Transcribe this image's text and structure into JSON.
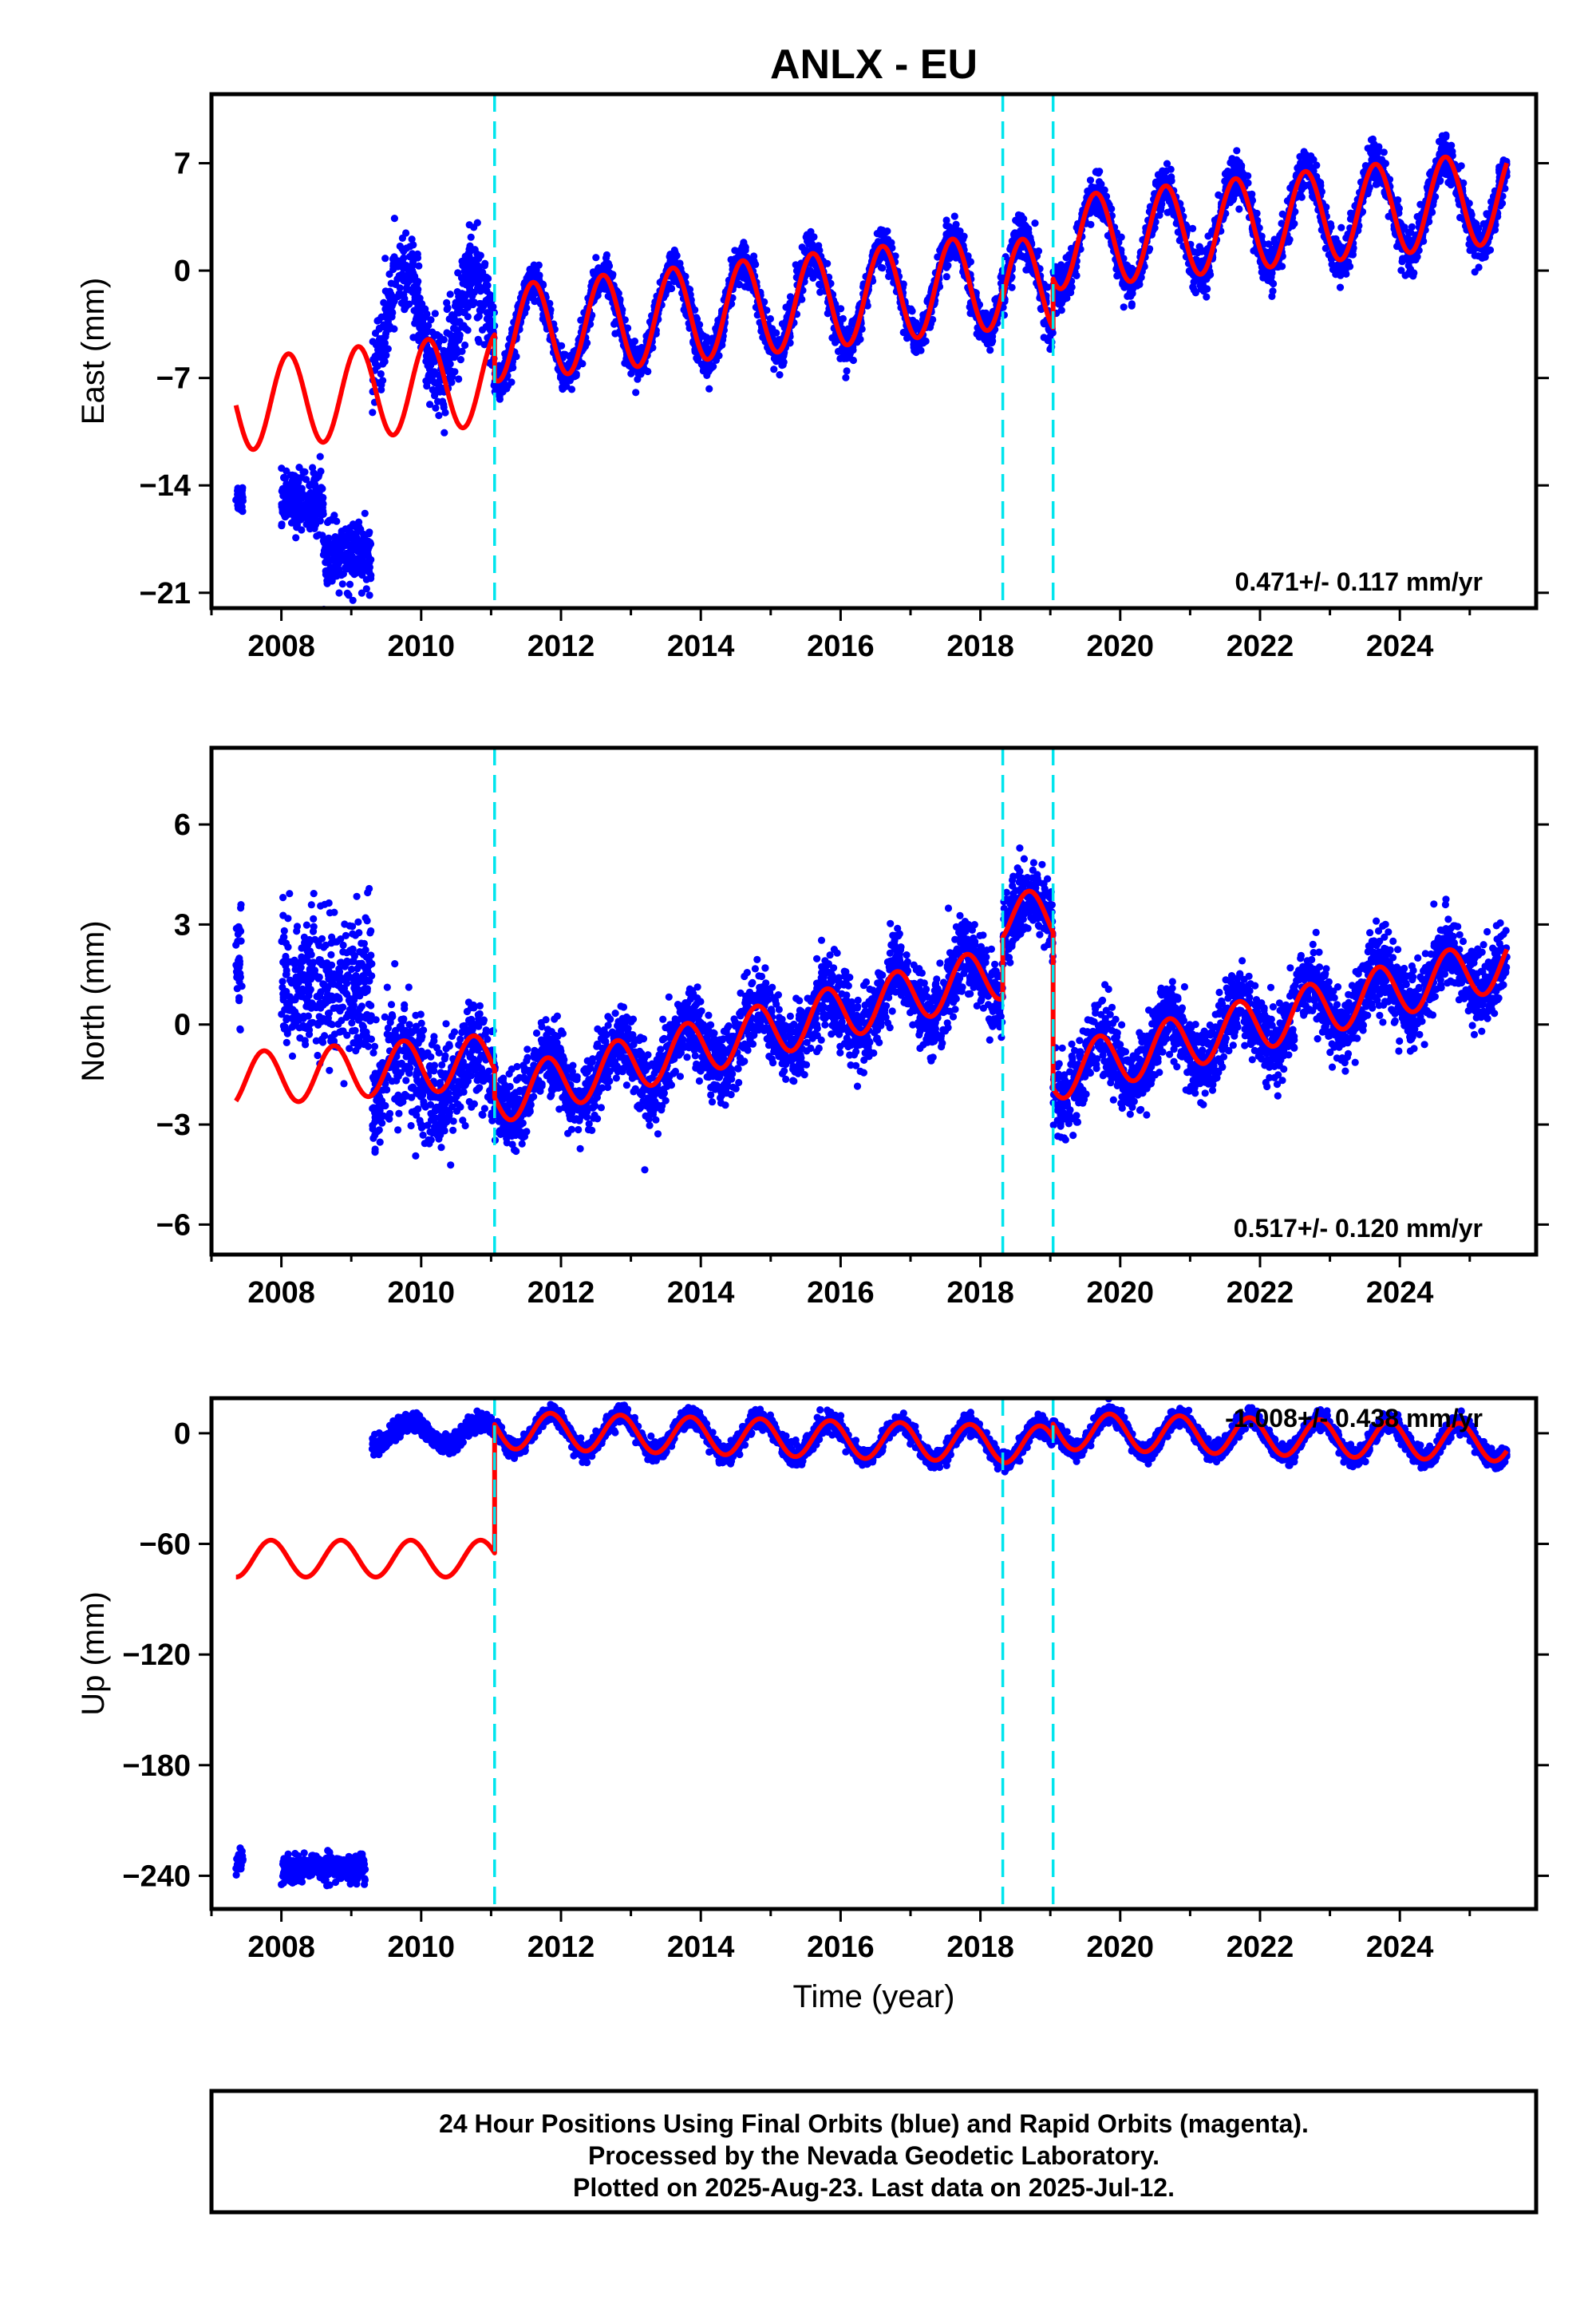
{
  "chart_data": {
    "type": "scatter",
    "title": "ANLX - EU",
    "xlabel": "Time (year)",
    "xlim": [
      2007.0,
      2025.95
    ],
    "x_ticks": [
      "2008",
      "2010",
      "2012",
      "2014",
      "2016",
      "2018",
      "2020",
      "2022",
      "2024"
    ],
    "x_tick_values": [
      2008,
      2010,
      2012,
      2014,
      2016,
      2018,
      2020,
      2022,
      2024
    ],
    "breaks": [
      2011.05,
      2018.32,
      2019.04
    ],
    "colors": {
      "data": "#0000ff",
      "model": "#ff0000",
      "breaks": "#00e5ee"
    },
    "series": [
      {
        "name": "Final Orbits",
        "color": "#0000ff"
      },
      {
        "name": "Rapid Orbits",
        "color": "#ff00ff"
      }
    ],
    "panels": [
      {
        "id": "east",
        "ylabel": "East (mm)",
        "ylim": [
          -22.0,
          11.5
        ],
        "y_ticks": [
          "7",
          "0",
          "−7",
          "−14",
          "−21"
        ],
        "y_tick_values": [
          7,
          0,
          -7,
          -14,
          -21
        ],
        "rate_label": "0.471+/- 0.117 mm/yr",
        "model": {
          "segments": [
            {
              "x_start": 2007.35,
              "x_end": 2011.05,
              "mean": -8.0,
              "slope": 0.471,
              "t0": 2009.0,
              "amplitude": 3.0,
              "phase_year": 2007.85
            },
            {
              "x_start": 2011.05,
              "x_end": 2018.32,
              "mean": -2.5,
              "slope": 0.471,
              "t0": 2014.5,
              "amplitude": 3.1,
              "phase_year": 2011.35
            },
            {
              "x_start": 2018.32,
              "x_end": 2019.04,
              "mean": -1.0,
              "slope": 0.471,
              "t0": 2018.7,
              "amplitude": 3.1,
              "phase_year": 2018.35
            },
            {
              "x_start": 2019.04,
              "x_end": 2025.53,
              "mean": 3.3,
              "slope": 0.471,
              "t0": 2022.3,
              "amplitude": 3.0,
              "phase_year": 2019.4
            }
          ]
        },
        "data_clusters": [
          {
            "x_start": 2007.35,
            "x_end": 2007.45,
            "mean": -14.8,
            "spread": 1.0
          },
          {
            "x_start": 2008.0,
            "x_end": 2008.6,
            "mean": -15.0,
            "spread": 2.0
          },
          {
            "x_start": 2008.6,
            "x_end": 2009.3,
            "mean": -18.6,
            "spread": 2.0
          },
          {
            "x_start": 2009.3,
            "x_end": 2011.05,
            "mean": -3.5,
            "spread": 3.0,
            "amplitude": 3.2,
            "phase_year": 2009.5
          },
          {
            "x_start": 2011.05,
            "x_end": 2018.32,
            "mean": -2.5,
            "slope": 0.471,
            "t0": 2014.5,
            "spread": 1.3,
            "amplitude": 3.1,
            "phase_year": 2011.35
          },
          {
            "x_start": 2018.32,
            "x_end": 2019.04,
            "mean": -1.0,
            "spread": 1.5,
            "amplitude": 3.0,
            "phase_year": 2018.35
          },
          {
            "x_start": 2019.04,
            "x_end": 2025.53,
            "mean": 3.3,
            "slope": 0.471,
            "t0": 2022.3,
            "spread": 1.4,
            "amplitude": 3.0,
            "phase_year": 2019.4
          }
        ]
      },
      {
        "id": "north",
        "ylabel": "North (mm)",
        "ylim": [
          -6.9,
          8.3
        ],
        "y_ticks": [
          "6",
          "3",
          "0",
          "−3",
          "−6"
        ],
        "y_tick_values": [
          6,
          3,
          0,
          -3,
          -6
        ],
        "rate_label": "0.517+/- 0.120 mm/yr",
        "model": {
          "segments": [
            {
              "x_start": 2007.35,
              "x_end": 2011.05,
              "mean": -1.4,
              "slope": 0.15,
              "t0": 2009.0,
              "amplitude": 0.8,
              "phase_year": 2008.5
            },
            {
              "x_start": 2011.05,
              "x_end": 2018.32,
              "mean": -0.3,
              "slope": 0.517,
              "t0": 2014.7,
              "amplitude": 0.8,
              "phase_year": 2011.55
            },
            {
              "x_start": 2018.32,
              "x_end": 2019.04,
              "mean": 3.2,
              "slope": 0.0,
              "t0": 2018.7,
              "amplitude": 0.8,
              "phase_year": 2018.45
            },
            {
              "x_start": 2019.04,
              "x_end": 2025.53,
              "mean": 0.2,
              "slope": 0.517,
              "t0": 2022.3,
              "amplitude": 0.8,
              "phase_year": 2019.45
            }
          ]
        },
        "data_clusters": [
          {
            "x_start": 2007.35,
            "x_end": 2007.45,
            "mean": 1.8,
            "spread": 1.6
          },
          {
            "x_start": 2008.0,
            "x_end": 2009.3,
            "mean": 1.2,
            "spread": 2.2
          },
          {
            "x_start": 2009.3,
            "x_end": 2011.05,
            "mean": -1.6,
            "spread": 1.6,
            "amplitude": 0.8,
            "phase_year": 2009.5
          },
          {
            "x_start": 2011.05,
            "x_end": 2018.32,
            "mean": -0.3,
            "slope": 0.517,
            "t0": 2014.7,
            "spread": 1.1,
            "amplitude": 0.8,
            "phase_year": 2011.55
          },
          {
            "x_start": 2018.32,
            "x_end": 2019.04,
            "mean": 3.2,
            "spread": 1.1,
            "amplitude": 0.8,
            "phase_year": 2018.45
          },
          {
            "x_start": 2019.04,
            "x_end": 2025.53,
            "mean": 0.2,
            "slope": 0.517,
            "t0": 2022.3,
            "spread": 1.1,
            "amplitude": 0.8,
            "phase_year": 2019.45
          }
        ]
      },
      {
        "id": "up",
        "ylabel": "Up (mm)",
        "ylim": [
          -258,
          19
        ],
        "y_ticks": [
          "0",
          "−60",
          "−120",
          "−180",
          "−240"
        ],
        "y_tick_values": [
          0,
          -60,
          -120,
          -180,
          -240
        ],
        "rate_label": "-1.008+/- 0.438 mm/yr",
        "model": {
          "segments": [
            {
              "x_start": 2007.35,
              "x_end": 2011.05,
              "mean": -68,
              "slope": 0.0,
              "t0": 2009.0,
              "amplitude": 10,
              "phase_year": 2007.6
            },
            {
              "x_start": 2011.05,
              "x_end": 2018.32,
              "mean": -2,
              "slope": -1.008,
              "t0": 2014.7,
              "amplitude": 10,
              "phase_year": 2011.6
            },
            {
              "x_start": 2018.32,
              "x_end": 2019.04,
              "mean": -6,
              "slope": 0.0,
              "t0": 2018.7,
              "amplitude": 10,
              "phase_year": 2018.6
            },
            {
              "x_start": 2019.04,
              "x_end": 2025.53,
              "mean": -2,
              "slope": -1.008,
              "t0": 2022.3,
              "amplitude": 10,
              "phase_year": 2019.6
            }
          ]
        },
        "data_clusters": [
          {
            "x_start": 2007.35,
            "x_end": 2007.45,
            "mean": -232,
            "spread": 5
          },
          {
            "x_start": 2008.0,
            "x_end": 2009.2,
            "mean": -236,
            "spread": 7
          },
          {
            "x_start": 2009.3,
            "x_end": 2011.05,
            "mean": 0,
            "spread": 5,
            "amplitude": 6,
            "phase_year": 2009.6
          },
          {
            "x_start": 2011.05,
            "x_end": 2018.32,
            "mean": -2,
            "slope": -1.008,
            "t0": 2014.7,
            "spread": 5,
            "amplitude": 10,
            "phase_year": 2011.6
          },
          {
            "x_start": 2018.32,
            "x_end": 2019.04,
            "mean": -6,
            "spread": 5,
            "amplitude": 10,
            "phase_year": 2018.6
          },
          {
            "x_start": 2019.04,
            "x_end": 2025.53,
            "mean": -2,
            "slope": -1.008,
            "t0": 2022.3,
            "spread": 5,
            "amplitude": 10,
            "phase_year": 2019.6
          }
        ]
      }
    ]
  },
  "footer": {
    "line1": "24 Hour Positions Using Final Orbits (blue) and Rapid Orbits (magenta).",
    "line2": "Processed by the Nevada Geodetic Laboratory.",
    "line3": "Plotted on 2025-Aug-23. Last data on 2025-Jul-12."
  }
}
